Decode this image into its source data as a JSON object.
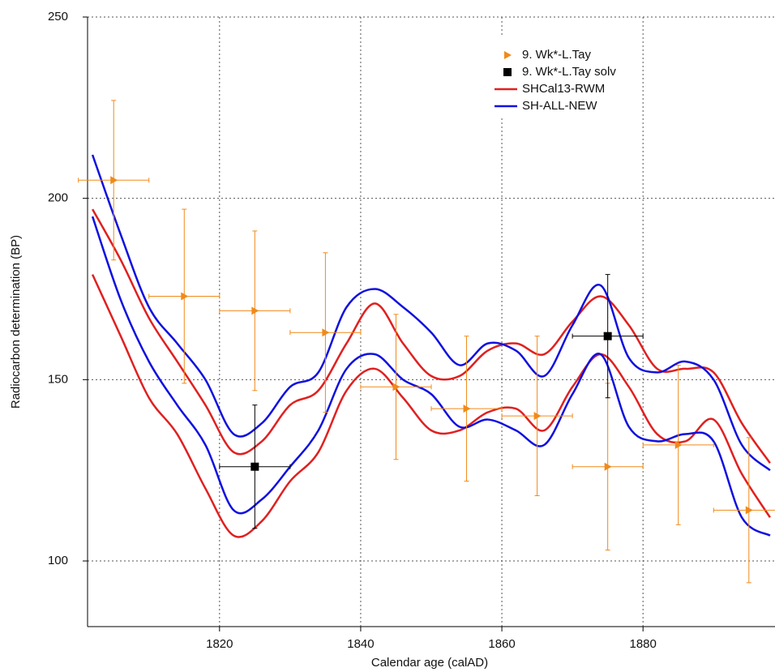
{
  "chart_data": {
    "type": "scatter",
    "x_label": "Calendar age (calAD)",
    "y_label": "Radiocarbon determination (BP)",
    "xlim": [
      1801.3,
      1898.7
    ],
    "ylim": [
      81.9,
      250
    ],
    "xticks": [
      1820,
      1840,
      1860,
      1880
    ],
    "yticks": [
      100,
      150,
      200,
      250
    ],
    "grid": true,
    "legend": "upper right",
    "series": [
      {
        "name": "9. Wk*-L.Tay",
        "color": "#f08a1a",
        "marker": "triangle",
        "x": [
          1805,
          1815,
          1825,
          1835,
          1845,
          1855,
          1865,
          1875,
          1885,
          1895
        ],
        "values": [
          205,
          173,
          169,
          163,
          148,
          142,
          140,
          126,
          132,
          114
        ],
        "xerr": [
          5,
          5,
          5,
          5,
          5,
          5,
          5,
          5,
          5,
          5
        ],
        "yerr": [
          22,
          24,
          22,
          22,
          20,
          20,
          22,
          23,
          22,
          20
        ]
      },
      {
        "name": "9. Wk*-L.Tay solv",
        "color": "#000000",
        "marker": "square",
        "x": [
          1825,
          1875
        ],
        "values": [
          126,
          162
        ],
        "xerr": [
          5,
          5
        ],
        "yerr": [
          17,
          17
        ]
      }
    ],
    "curves": [
      {
        "name": "SHCal13-RWM",
        "color": "#e02020",
        "x": [
          1802,
          1806,
          1810,
          1814,
          1818,
          1822,
          1826,
          1830,
          1834,
          1838,
          1842,
          1846,
          1850,
          1854,
          1858,
          1862,
          1866,
          1870,
          1874,
          1878,
          1882,
          1886,
          1890,
          1894,
          1898
        ],
        "upper": [
          197,
          183,
          167,
          155,
          143,
          130,
          133,
          143,
          147,
          160,
          171,
          160,
          151,
          151,
          158,
          160,
          157,
          166,
          173,
          165,
          153,
          153,
          152,
          138,
          127
        ],
        "lower": [
          179,
          162,
          145,
          135,
          120,
          107,
          111,
          122,
          130,
          147,
          153,
          145,
          136,
          136,
          141,
          142,
          136,
          148,
          157,
          148,
          135,
          133,
          139,
          124,
          112
        ]
      },
      {
        "name": "SH-ALL-NEW",
        "color": "#1010e0",
        "x": [
          1802,
          1806,
          1810,
          1814,
          1818,
          1822,
          1826,
          1830,
          1834,
          1838,
          1842,
          1846,
          1850,
          1854,
          1858,
          1862,
          1866,
          1870,
          1874,
          1878,
          1882,
          1886,
          1890,
          1894,
          1898
        ],
        "upper": [
          212,
          190,
          170,
          160,
          150,
          135,
          138,
          148,
          152,
          170,
          175,
          170,
          163,
          154,
          160,
          158,
          151,
          165,
          176,
          156,
          152,
          155,
          150,
          132,
          125
        ],
        "lower": [
          195,
          172,
          155,
          143,
          132,
          114,
          117,
          126,
          136,
          153,
          157,
          150,
          146,
          137,
          139,
          136,
          132,
          146,
          157,
          137,
          133,
          135,
          133,
          112,
          107
        ]
      }
    ]
  }
}
